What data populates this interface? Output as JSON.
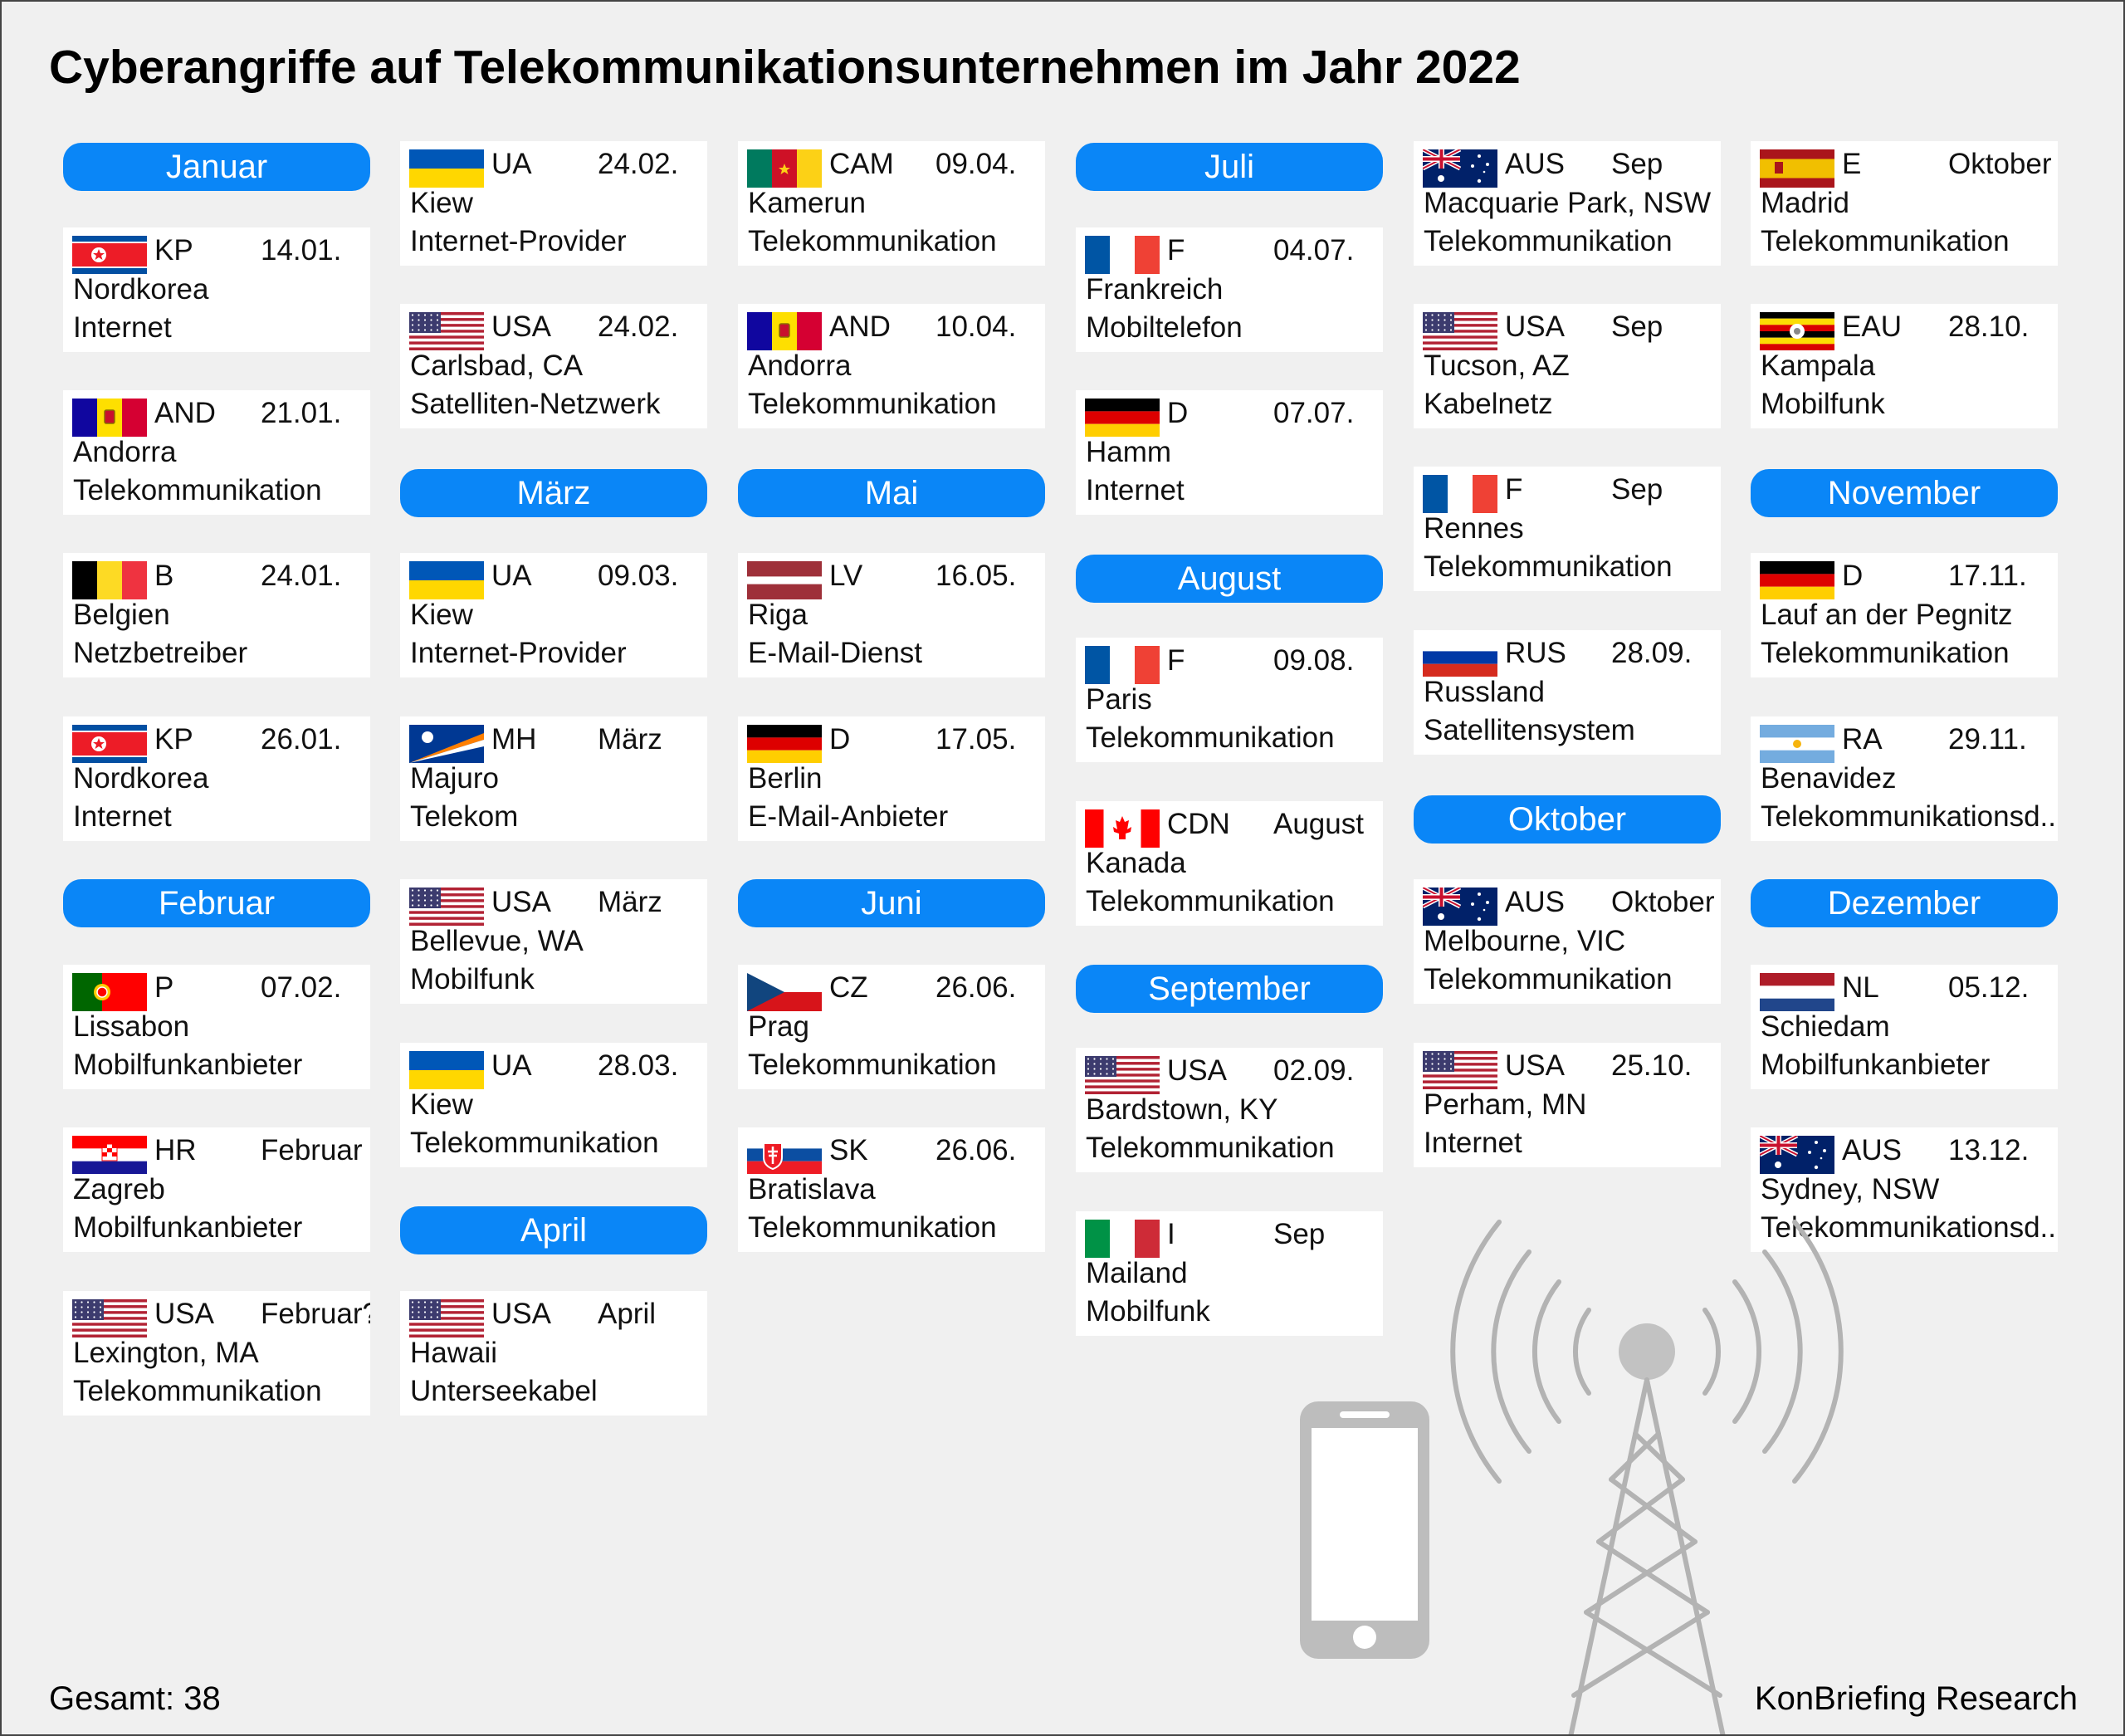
{
  "title": "Cyberangriffe auf Telekommunikationsunternehmen im Jahr 2022",
  "total": "Gesamt: 38",
  "source": "KonBriefing Research",
  "colors": {
    "month_pill": "#0a86f7",
    "background": "#f0f0f0",
    "card": "#ffffff",
    "antenna": "#b3b3b3"
  },
  "months": [
    "Januar",
    "Februar",
    "März",
    "April",
    "Mai",
    "Juni",
    "Juli",
    "August",
    "September",
    "Oktober",
    "November",
    "Dezember"
  ],
  "entries": [
    {
      "flag": "KP",
      "code": "KP",
      "date": "14.01.",
      "city": "Nordkorea",
      "sector": "Internet"
    },
    {
      "flag": "AND",
      "code": "AND",
      "date": "21.01.",
      "city": "Andorra",
      "sector": "Telekommunikation"
    },
    {
      "flag": "B",
      "code": "B",
      "date": "24.01.",
      "city": "Belgien",
      "sector": "Netzbetreiber"
    },
    {
      "flag": "KP",
      "code": "KP",
      "date": "26.01.",
      "city": "Nordkorea",
      "sector": "Internet"
    },
    {
      "flag": "P",
      "code": "P",
      "date": "07.02.",
      "city": "Lissabon",
      "sector": "Mobilfunkanbieter"
    },
    {
      "flag": "HR",
      "code": "HR",
      "date": "Februar",
      "city": "Zagreb",
      "sector": "Mobilfunkanbieter"
    },
    {
      "flag": "USA",
      "code": "USA",
      "date": "Februar?",
      "city": "Lexington, MA",
      "sector": "Telekommunikation"
    },
    {
      "flag": "UA",
      "code": "UA",
      "date": "24.02.",
      "city": "Kiew",
      "sector": "Internet-Provider"
    },
    {
      "flag": "USA",
      "code": "USA",
      "date": "24.02.",
      "city": "Carlsbad, CA",
      "sector": "Satelliten-Netzwerk"
    },
    {
      "flag": "UA",
      "code": "UA",
      "date": "09.03.",
      "city": "Kiew",
      "sector": "Internet-Provider"
    },
    {
      "flag": "MH",
      "code": "MH",
      "date": "März",
      "city": "Majuro",
      "sector": "Telekom"
    },
    {
      "flag": "USA",
      "code": "USA",
      "date": "März",
      "city": "Bellevue, WA",
      "sector": "Mobilfunk"
    },
    {
      "flag": "UA",
      "code": "UA",
      "date": "28.03.",
      "city": "Kiew",
      "sector": "Telekommunikation"
    },
    {
      "flag": "USA",
      "code": "USA",
      "date": "April",
      "city": "Hawaii",
      "sector": "Unterseekabel"
    },
    {
      "flag": "CAM",
      "code": "CAM",
      "date": "09.04.",
      "city": "Kamerun",
      "sector": "Telekommunikation"
    },
    {
      "flag": "AND",
      "code": "AND",
      "date": "10.04.",
      "city": "Andorra",
      "sector": "Telekommunikation"
    },
    {
      "flag": "LV",
      "code": "LV",
      "date": "16.05.",
      "city": "Riga",
      "sector": "E-Mail-Dienst"
    },
    {
      "flag": "D",
      "code": "D",
      "date": "17.05.",
      "city": "Berlin",
      "sector": "E-Mail-Anbieter"
    },
    {
      "flag": "CZ",
      "code": "CZ",
      "date": "26.06.",
      "city": "Prag",
      "sector": "Telekommunikation"
    },
    {
      "flag": "SK",
      "code": "SK",
      "date": "26.06.",
      "city": "Bratislava",
      "sector": "Telekommunikation"
    },
    {
      "flag": "F",
      "code": "F",
      "date": "04.07.",
      "city": "Frankreich",
      "sector": "Mobiltelefon"
    },
    {
      "flag": "D",
      "code": "D",
      "date": "07.07.",
      "city": "Hamm",
      "sector": "Internet"
    },
    {
      "flag": "F",
      "code": "F",
      "date": "09.08.",
      "city": "Paris",
      "sector": "Telekommunikation"
    },
    {
      "flag": "CDN",
      "code": "CDN",
      "date": "August",
      "city": "Kanada",
      "sector": "Telekommunikation"
    },
    {
      "flag": "USA",
      "code": "USA",
      "date": "02.09.",
      "city": "Bardstown, KY",
      "sector": "Telekommunikation"
    },
    {
      "flag": "I",
      "code": "I",
      "date": "Sep",
      "city": "Mailand",
      "sector": "Mobilfunk"
    },
    {
      "flag": "AUS",
      "code": "AUS",
      "date": "Sep",
      "city": "Macquarie Park, NSW",
      "sector": "Telekommunikation"
    },
    {
      "flag": "USA",
      "code": "USA",
      "date": "Sep",
      "city": "Tucson, AZ",
      "sector": "Kabelnetz"
    },
    {
      "flag": "F",
      "code": "F",
      "date": "Sep",
      "city": "Rennes",
      "sector": "Telekommunikation"
    },
    {
      "flag": "RUS",
      "code": "RUS",
      "date": "28.09.",
      "city": "Russland",
      "sector": "Satellitensystem"
    },
    {
      "flag": "AUS",
      "code": "AUS",
      "date": "Oktober",
      "city": "Melbourne, VIC",
      "sector": "Telekommunikation"
    },
    {
      "flag": "USA",
      "code": "USA",
      "date": "25.10.",
      "city": "Perham, MN",
      "sector": "Internet"
    },
    {
      "flag": "E",
      "code": "E",
      "date": "Oktober",
      "city": "Madrid",
      "sector": "Telekommunikation"
    },
    {
      "flag": "EAU",
      "code": "EAU",
      "date": "28.10.",
      "city": "Kampala",
      "sector": "Mobilfunk"
    },
    {
      "flag": "D",
      "code": "D",
      "date": "17.11.",
      "city": "Lauf an der Pegnitz",
      "sector": "Telekommunikation"
    },
    {
      "flag": "RA",
      "code": "RA",
      "date": "29.11.",
      "city": "Benavidez",
      "sector": "Telekommunikationsd..."
    },
    {
      "flag": "NL",
      "code": "NL",
      "date": "05.12.",
      "city": "Schiedam",
      "sector": "Mobilfunkanbieter"
    },
    {
      "flag": "AUS",
      "code": "AUS",
      "date": "13.12.",
      "city": "Sydney, NSW",
      "sector": "Telekommunikationsd..."
    }
  ],
  "decoration": {
    "phone": "smartphone-icon",
    "tower": "radio-tower-icon"
  }
}
